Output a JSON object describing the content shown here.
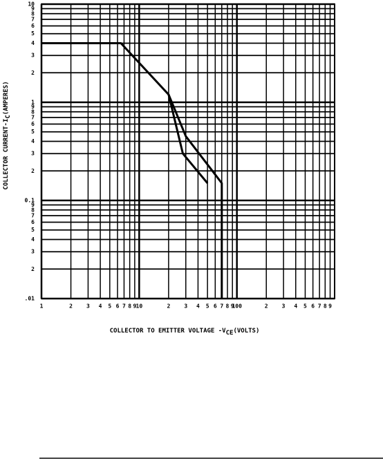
{
  "chart_data": {
    "type": "line",
    "log_x": true,
    "log_y": true,
    "grid": true,
    "x_label": "COLLECTOR TO EMITTER VOLTAGE -V",
    "x_label_sub": "CE",
    "x_label_end": "(VOLTS)",
    "y_label": "COLLECTOR CURRENT-I",
    "y_label_sub": "C",
    "y_label_end": "(AMPERES)",
    "xlim": [
      1,
      1000
    ],
    "ylim": [
      0.01,
      10
    ],
    "xticks": [
      1,
      2,
      3,
      4,
      5,
      6,
      7,
      8,
      9,
      10,
      {
        "value": 20,
        "label": "2"
      },
      {
        "value": 30,
        "label": "3"
      },
      {
        "value": 40,
        "label": "4"
      },
      {
        "value": 50,
        "label": "5"
      },
      {
        "value": 60,
        "label": "6"
      },
      {
        "value": 70,
        "label": "7"
      },
      {
        "value": 80,
        "label": "8"
      },
      {
        "value": 90,
        "label": "9"
      },
      100,
      {
        "value": 200,
        "label": "2"
      },
      {
        "value": 300,
        "label": "3"
      },
      {
        "value": 400,
        "label": "4"
      },
      {
        "value": 500,
        "label": "5"
      },
      {
        "value": 600,
        "label": "6"
      },
      {
        "value": 700,
        "label": "7"
      },
      {
        "value": 800,
        "label": "8"
      },
      {
        "value": 900,
        "label": "9"
      }
    ],
    "yticks": [
      {
        "value": 0.01,
        "label": ".01"
      },
      {
        "value": 0.02,
        "label": "2"
      },
      {
        "value": 0.03,
        "label": "3"
      },
      {
        "value": 0.04,
        "label": "4"
      },
      {
        "value": 0.05,
        "label": "5"
      },
      {
        "value": 0.06,
        "label": "6"
      },
      {
        "value": 0.07,
        "label": "7"
      },
      {
        "value": 0.08,
        "label": "8"
      },
      {
        "value": 0.09,
        "label": "9"
      },
      0.1,
      {
        "value": 0.2,
        "label": "2"
      },
      {
        "value": 0.3,
        "label": "3"
      },
      {
        "value": 0.4,
        "label": "4"
      },
      {
        "value": 0.5,
        "label": "5"
      },
      {
        "value": 0.6,
        "label": "6"
      },
      {
        "value": 0.7,
        "label": "7"
      },
      {
        "value": 0.8,
        "label": "8"
      },
      {
        "value": 0.9,
        "label": "9"
      },
      1,
      2,
      3,
      4,
      5,
      6,
      7,
      8,
      9,
      10
    ],
    "series": [
      {
        "color": "#000000",
        "x": [
          1,
          6.5,
          20,
          28,
          50,
          50
        ],
        "values": [
          4,
          4,
          1.2,
          0.3,
          0.15,
          0.15
        ]
      },
      {
        "color": "#000000",
        "x": [
          20,
          30,
          70,
          70
        ],
        "values": [
          1.2,
          0.45,
          0.15,
          0.01
        ]
      }
    ]
  }
}
